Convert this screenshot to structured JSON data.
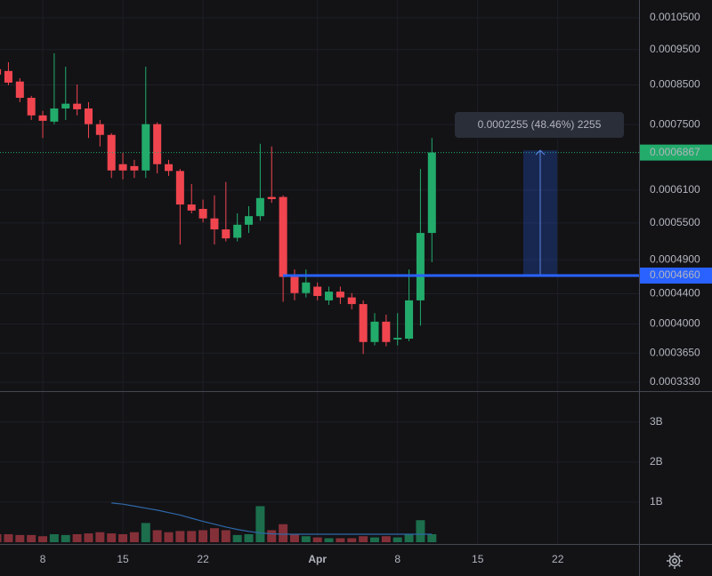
{
  "chart_data": {
    "type": "candlestick",
    "categories": [
      null,
      null,
      null,
      null,
      "8",
      null,
      null,
      null,
      null,
      null,
      null,
      "15",
      null,
      null,
      null,
      null,
      null,
      null,
      "22",
      null,
      null,
      null,
      null,
      null,
      null,
      null,
      null,
      null,
      "Apr",
      null,
      null,
      null,
      null,
      null,
      null,
      "8",
      null,
      null,
      null,
      null,
      null,
      null,
      "15",
      null,
      null,
      null,
      null,
      null,
      null,
      "22",
      null,
      null,
      null,
      null,
      null,
      null,
      null
    ],
    "open": [
      0.000893,
      0.000888,
      0.000859,
      0.000816,
      0.000772,
      0.000757,
      0.000789,
      0.000801,
      0.000789,
      0.000751,
      0.000726,
      0.000662,
      0.000658,
      0.000649,
      0.000751,
      0.000662,
      0.000648,
      0.000583,
      0.000575,
      0.000558,
      0.000539,
      0.000525,
      0.000547,
      0.000562,
      0.000597,
      0.000597,
      0.000464,
      0.000441,
      0.00045,
      0.000431,
      0.000443,
      0.000435,
      0.000426,
      0.000378,
      0.000403,
      0.000381,
      0.000382,
      0.000431,
      0.000533,
      null,
      null,
      null,
      null,
      null,
      null,
      null,
      null,
      null,
      null,
      null,
      null,
      null,
      null,
      null,
      null,
      null,
      null
    ],
    "high": [
      0.0009,
      0.000913,
      0.000868,
      0.000821,
      0.000783,
      0.000939,
      0.0009,
      0.000851,
      0.000805,
      0.000761,
      0.00073,
      0.000686,
      0.000671,
      0.0009,
      0.000755,
      0.000671,
      0.000652,
      0.000622,
      0.000592,
      0.0006,
      0.000626,
      0.000567,
      0.00058,
      0.000706,
      0.0007,
      0.0006,
      0.000475,
      0.000475,
      0.000456,
      0.00045,
      0.00045,
      0.000441,
      0.000431,
      0.000414,
      0.000412,
      0.000414,
      0.000475,
      0.000652,
      0.000719,
      null,
      null,
      null,
      null,
      null,
      null,
      null,
      null,
      null,
      null,
      null,
      null,
      null,
      null,
      null,
      null,
      null,
      null
    ],
    "low": [
      0.000868,
      0.000849,
      0.000805,
      0.000761,
      0.000719,
      0.000751,
      0.000761,
      0.000772,
      0.000719,
      0.0007,
      0.000634,
      0.000631,
      0.000634,
      0.000634,
      0.000643,
      0.000638,
      0.000514,
      0.000567,
      0.000551,
      0.000514,
      0.000519,
      0.000519,
      0.000533,
      0.000554,
      0.000586,
      0.000429,
      0.000431,
      0.000435,
      0.000431,
      0.000425,
      0.000426,
      0.000419,
      0.000364,
      0.000374,
      0.000373,
      0.000374,
      0.000379,
      0.000398,
      0.000486,
      null,
      null,
      null,
      null,
      null,
      null,
      null,
      null,
      null,
      null,
      null,
      null,
      null,
      null,
      null,
      null,
      null,
      null
    ],
    "close": [
      0.000878,
      0.000856,
      0.000816,
      0.000772,
      0.000759,
      0.000789,
      0.000801,
      0.000787,
      0.000751,
      0.000726,
      0.000649,
      0.000649,
      0.000649,
      0.000751,
      0.000662,
      0.000648,
      0.000583,
      0.000572,
      0.000558,
      0.000539,
      0.000524,
      0.000547,
      0.000562,
      0.000595,
      0.000593,
      0.000464,
      0.000441,
      0.000456,
      0.000437,
      0.000443,
      0.000435,
      0.000426,
      0.000378,
      0.000403,
      0.000378,
      0.000383,
      0.000431,
      0.000533,
      0.0006867,
      null,
      null,
      null,
      null,
      null,
      null,
      null,
      null,
      null,
      null,
      null,
      null,
      null,
      null,
      null,
      null,
      null,
      null
    ],
    "volume": [
      200000000,
      200000000,
      180000000,
      180000000,
      150000000,
      200000000,
      180000000,
      200000000,
      220000000,
      250000000,
      220000000,
      200000000,
      250000000,
      480000000,
      300000000,
      250000000,
      280000000,
      280000000,
      300000000,
      350000000,
      300000000,
      180000000,
      200000000,
      900000000,
      300000000,
      450000000,
      200000000,
      150000000,
      120000000,
      100000000,
      100000000,
      100000000,
      150000000,
      120000000,
      150000000,
      120000000,
      200000000,
      550000000,
      200000000,
      null,
      null,
      null,
      null,
      null,
      null,
      null,
      null,
      null,
      null,
      null,
      null,
      null,
      null,
      null,
      null,
      null,
      null
    ],
    "volume_ma": [
      null,
      null,
      null,
      null,
      null,
      null,
      null,
      null,
      null,
      null,
      980000000,
      950000000,
      900000000,
      850000000,
      800000000,
      740000000,
      680000000,
      600000000,
      520000000,
      450000000,
      380000000,
      320000000,
      270000000,
      230000000,
      210000000,
      200000000,
      200000000,
      200000000,
      200000000,
      200000000,
      200000000,
      200000000,
      200000000,
      200000000,
      200000000,
      200000000,
      200000000,
      200000000,
      200000000,
      null,
      null,
      null,
      null,
      null,
      null,
      null,
      null,
      null,
      null,
      null,
      null,
      null,
      null,
      null,
      null,
      null,
      null
    ],
    "up_color": "#22ab6b",
    "down_color": "#f0454f",
    "volume_up_color": "#1c6e4c",
    "volume_down_color": "#843038",
    "volume_ma_color": "#2f68a8",
    "log_scale": true,
    "ylim": [
      0.0003238,
      0.0011106
    ],
    "yticks": [
      {
        "value": 0.00105,
        "label": "0.0010500"
      },
      {
        "value": 0.00095,
        "label": "0.0009500"
      },
      {
        "value": 0.00085,
        "label": "0.0008500"
      },
      {
        "value": 0.00075,
        "label": "0.0007500"
      },
      {
        "value": 0.00061,
        "label": "0.0006100"
      },
      {
        "value": 0.00055,
        "label": "0.0005500"
      },
      {
        "value": 0.00049,
        "label": "0.0004900"
      },
      {
        "value": 0.00044,
        "label": "0.0004400"
      },
      {
        "value": 0.0004,
        "label": "0.0004000"
      },
      {
        "value": 0.000365,
        "label": "0.0003650"
      },
      {
        "value": 0.000333,
        "label": "0.0003330"
      }
    ],
    "volume_ylim": [
      0,
      3750000000
    ],
    "volume_ticks": [
      {
        "value": 1000000000,
        "label": "1B"
      },
      {
        "value": 2000000000,
        "label": "2B"
      },
      {
        "value": 3000000000,
        "label": "3B"
      }
    ],
    "grid": true,
    "last_price": {
      "value": 0.0006867,
      "label": "0.0006867",
      "color": "#22ab6b"
    },
    "price_line": {
      "value": 0.000466,
      "label": "0.0004660",
      "color": "#2962ff"
    },
    "measure": {
      "from": 0.000466,
      "to": 0.0006915,
      "label": "0.0002255 (48.46%) 2255"
    }
  }
}
